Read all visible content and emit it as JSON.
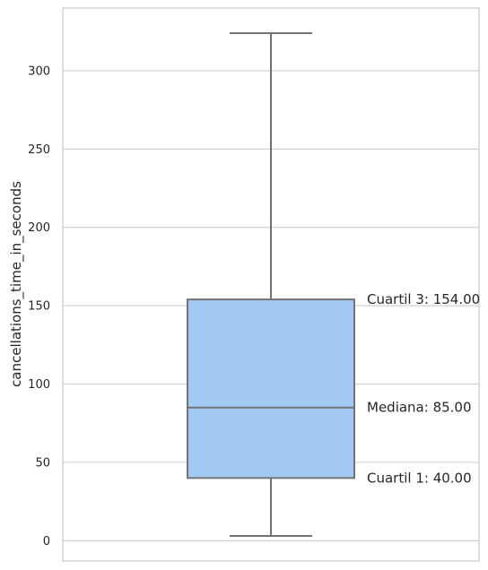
{
  "chart_data": {
    "type": "box",
    "ylabel": "cancellations_time_in_seconds",
    "xlabel": "",
    "ylim": [
      -13,
      340
    ],
    "yticks": [
      0,
      50,
      100,
      150,
      200,
      250,
      300
    ],
    "grid": true,
    "box": {
      "whisker_low": 3,
      "q1": 40,
      "median": 85,
      "q3": 154,
      "whisker_high": 324
    },
    "annotations": [
      {
        "text": "Cuartil 3: 154.00",
        "value": 154
      },
      {
        "text": "Mediana: 85.00",
        "value": 85
      },
      {
        "text": "Cuartil 1: 40.00",
        "value": 40
      }
    ],
    "colors": {
      "box_fill": "#a1c9f4",
      "box_edge": "#737373",
      "grid": "#cccccc",
      "frame": "#cccccc"
    }
  }
}
